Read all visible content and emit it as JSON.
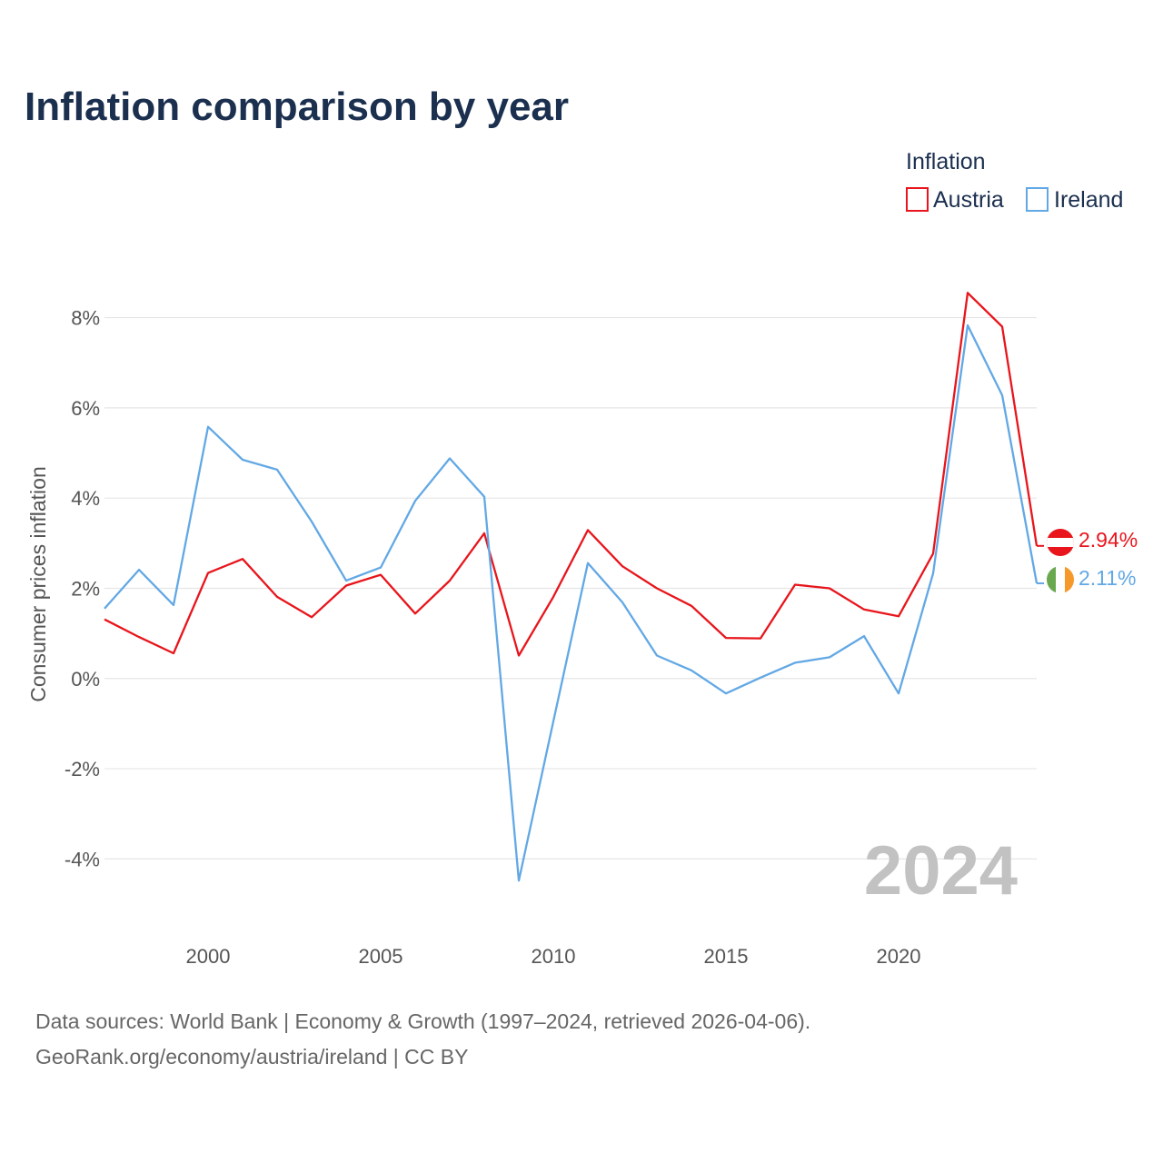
{
  "chart_data": {
    "type": "line",
    "title": "Inflation comparison by year",
    "legend_title": "Inflation",
    "legend_position": "top-right",
    "ylabel": "Consumer prices inflation",
    "xlabel": "",
    "xlim": [
      1997,
      2024
    ],
    "ylim": [
      -5.1,
      9.2
    ],
    "y_ticks": [
      -4,
      -2,
      0,
      2,
      4,
      6,
      8
    ],
    "y_tick_labels": [
      "-4%",
      "-2%",
      "0%",
      "2%",
      "4%",
      "6%",
      "8%"
    ],
    "x_ticks": [
      2000,
      2005,
      2010,
      2015,
      2020
    ],
    "x_tick_labels": [
      "2000",
      "2005",
      "2010",
      "2015",
      "2020"
    ],
    "grid": true,
    "x": [
      1997,
      1998,
      1999,
      2000,
      2001,
      2002,
      2003,
      2004,
      2005,
      2006,
      2007,
      2008,
      2009,
      2010,
      2011,
      2012,
      2013,
      2014,
      2015,
      2016,
      2017,
      2018,
      2019,
      2020,
      2021,
      2022,
      2023,
      2024
    ],
    "series": [
      {
        "name": "Austria",
        "color": "#e8151c",
        "flag": "austria-flag-icon",
        "end_label": "2.94%",
        "values": [
          1.31,
          0.92,
          0.56,
          2.34,
          2.65,
          1.81,
          1.36,
          2.06,
          2.3,
          1.44,
          2.17,
          3.22,
          0.51,
          1.81,
          3.29,
          2.49,
          2.0,
          1.61,
          0.9,
          0.89,
          2.08,
          2.0,
          1.53,
          1.38,
          2.77,
          8.55,
          7.8,
          2.94
        ]
      },
      {
        "name": "Ireland",
        "color": "#62a8e5",
        "flag": "ireland-flag-icon",
        "end_label": "2.11%",
        "values": [
          1.55,
          2.41,
          1.63,
          5.58,
          4.85,
          4.63,
          3.48,
          2.17,
          2.46,
          3.94,
          4.88,
          4.03,
          -4.48,
          -0.95,
          2.56,
          1.69,
          0.51,
          0.18,
          -0.33,
          0.02,
          0.35,
          0.47,
          0.94,
          -0.33,
          2.33,
          7.83,
          6.28,
          2.11
        ]
      }
    ],
    "watermark_year": "2024"
  },
  "source_line_1": "Data sources: World Bank | Economy & Growth (1997–2024, retrieved 2026-04-06).",
  "source_line_2": "GeoRank.org/economy/austria/ireland | CC BY"
}
